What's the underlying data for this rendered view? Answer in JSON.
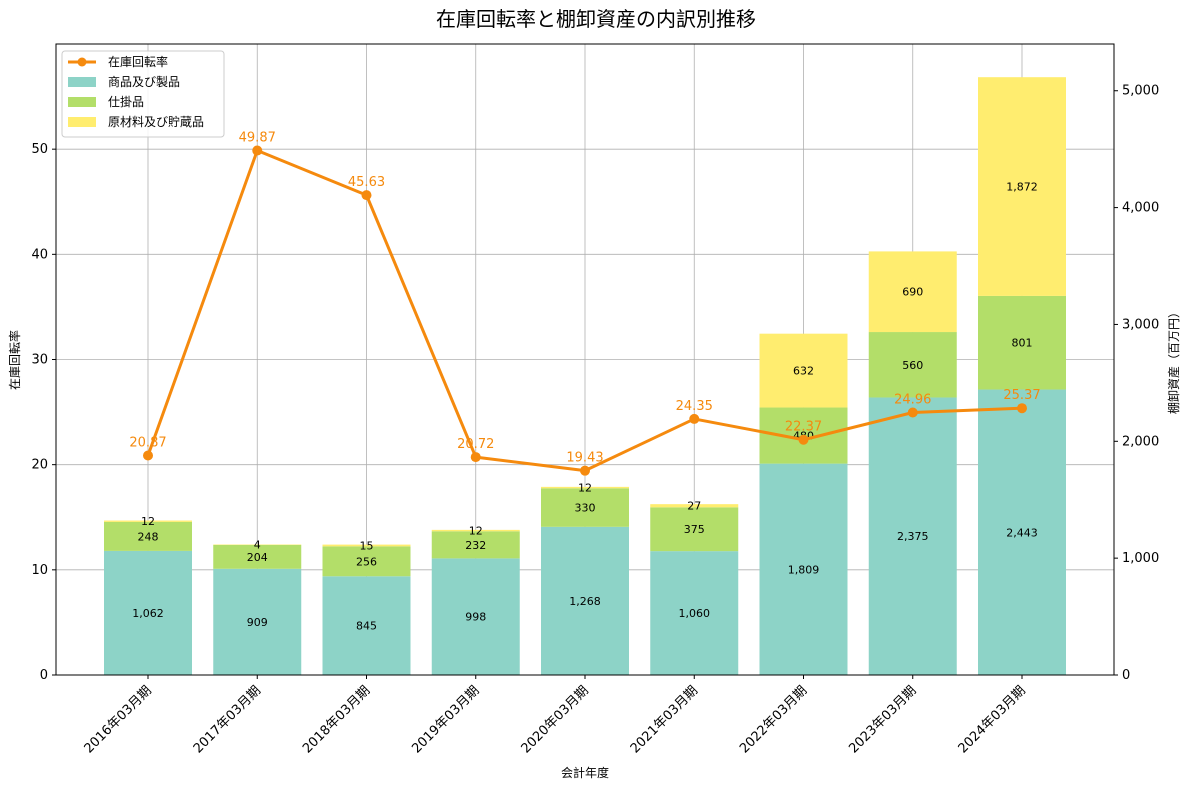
{
  "chart_data": {
    "type": "bar",
    "title": "在庫回転率と棚卸資産の内訳別推移",
    "xlabel": "会計年度",
    "ylabel_left": "在庫回転率",
    "ylabel_right": "棚卸資産（百万円）",
    "categories": [
      "2016年03月期",
      "2017年03月期",
      "2018年03月期",
      "2019年03月期",
      "2020年03月期",
      "2021年03月期",
      "2022年03月期",
      "2023年03月期",
      "2024年03月期"
    ],
    "ylim_left": [
      0,
      60
    ],
    "yticks_left": [
      0,
      10,
      20,
      30,
      40,
      50
    ],
    "ylim_right": [
      0,
      5400
    ],
    "yticks_right": [
      0,
      1000,
      2000,
      3000,
      4000,
      5000
    ],
    "ytick_labels_right": [
      "0",
      "1,000",
      "2,000",
      "3,000",
      "4,000",
      "5,000"
    ],
    "grid": true,
    "legend_position": "top-left",
    "series": [
      {
        "name": "商品及び製品",
        "axis": "right",
        "kind": "bar",
        "color": "#8dd3c7",
        "values": [
          1062,
          909,
          845,
          998,
          1268,
          1060,
          1809,
          2375,
          2443
        ],
        "labels": [
          "1,062",
          "909",
          "845",
          "998",
          "1,268",
          "1,060",
          "1,809",
          "2,375",
          "2,443"
        ]
      },
      {
        "name": "仕掛品",
        "axis": "right",
        "kind": "bar",
        "color": "#b3de69",
        "values": [
          248,
          204,
          256,
          232,
          330,
          375,
          480,
          560,
          801
        ],
        "labels": [
          "248",
          "204",
          "256",
          "232",
          "330",
          "375",
          "480",
          "560",
          "801"
        ]
      },
      {
        "name": "原材料及び貯蔵品",
        "axis": "right",
        "kind": "bar",
        "color": "#ffed6f",
        "values": [
          12,
          4,
          15,
          12,
          12,
          27,
          632,
          690,
          1872
        ],
        "labels": [
          "12",
          "4",
          "15",
          "12",
          "12",
          "27",
          "632",
          "690",
          "1,872"
        ]
      },
      {
        "name": "在庫回転率",
        "axis": "left",
        "kind": "line",
        "color": "#f58a0e",
        "values": [
          20.87,
          49.87,
          45.63,
          20.72,
          19.43,
          24.35,
          22.37,
          24.96,
          25.37
        ],
        "labels": [
          "20.87",
          "49.87",
          "45.63",
          "20.72",
          "19.43",
          "24.35",
          "22.37",
          "24.96",
          "25.37"
        ]
      }
    ]
  }
}
